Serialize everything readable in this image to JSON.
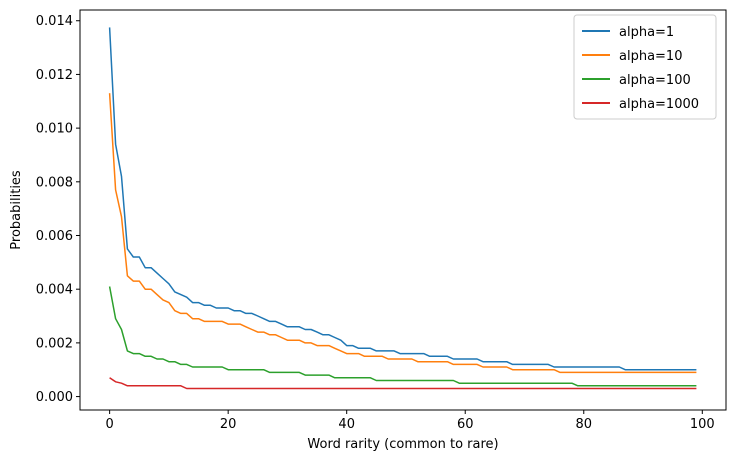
{
  "chart_data": {
    "type": "line",
    "title": "",
    "xlabel": "Word rarity (common to rare)",
    "ylabel": "Probabilities",
    "xlim": [
      -5,
      104
    ],
    "ylim": [
      -0.0005,
      0.0144
    ],
    "xticks": [
      0,
      20,
      40,
      60,
      80,
      100
    ],
    "xtick_labels": [
      "0",
      "20",
      "40",
      "60",
      "80",
      "100"
    ],
    "yticks": [
      0.0,
      0.002,
      0.004,
      0.006,
      0.008,
      0.01,
      0.012,
      0.014
    ],
    "ytick_labels": [
      "0.000",
      "0.002",
      "0.004",
      "0.006",
      "0.008",
      "0.010",
      "0.012",
      "0.014"
    ],
    "grid": false,
    "legend_position": "top-right",
    "x": [
      0,
      1,
      2,
      3,
      4,
      5,
      6,
      7,
      8,
      9,
      10,
      11,
      12,
      13,
      14,
      15,
      16,
      17,
      18,
      19,
      20,
      21,
      22,
      23,
      24,
      25,
      26,
      27,
      28,
      29,
      30,
      31,
      32,
      33,
      34,
      35,
      36,
      37,
      38,
      39,
      40,
      41,
      42,
      43,
      44,
      45,
      46,
      47,
      48,
      49,
      50,
      51,
      52,
      53,
      54,
      55,
      56,
      57,
      58,
      59,
      60,
      61,
      62,
      63,
      64,
      65,
      66,
      67,
      68,
      69,
      70,
      71,
      72,
      73,
      74,
      75,
      76,
      77,
      78,
      79,
      80,
      81,
      82,
      83,
      84,
      85,
      86,
      87,
      88,
      89,
      90,
      91,
      92,
      93,
      94,
      95,
      96,
      97,
      98,
      99
    ],
    "series": [
      {
        "name": "alpha=1",
        "color": "#1f77b4",
        "values": [
          0.01375,
          0.0094,
          0.0082,
          0.0055,
          0.0052,
          0.0052,
          0.0048,
          0.0048,
          0.0046,
          0.0044,
          0.0042,
          0.0039,
          0.0038,
          0.0037,
          0.0035,
          0.0035,
          0.0034,
          0.0034,
          0.0033,
          0.0033,
          0.0033,
          0.0032,
          0.0032,
          0.0031,
          0.0031,
          0.003,
          0.0029,
          0.0028,
          0.0028,
          0.0027,
          0.0026,
          0.0026,
          0.0026,
          0.0025,
          0.0025,
          0.0024,
          0.0023,
          0.0023,
          0.0022,
          0.0021,
          0.0019,
          0.0019,
          0.0018,
          0.0018,
          0.0018,
          0.0017,
          0.0017,
          0.0017,
          0.0017,
          0.0016,
          0.0016,
          0.0016,
          0.0016,
          0.0016,
          0.0015,
          0.0015,
          0.0015,
          0.0015,
          0.0014,
          0.0014,
          0.0014,
          0.0014,
          0.0014,
          0.0013,
          0.0013,
          0.0013,
          0.0013,
          0.0013,
          0.0012,
          0.0012,
          0.0012,
          0.0012,
          0.0012,
          0.0012,
          0.0012,
          0.0011,
          0.0011,
          0.0011,
          0.0011,
          0.0011,
          0.0011,
          0.0011,
          0.0011,
          0.0011,
          0.0011,
          0.0011,
          0.0011,
          0.001,
          0.001,
          0.001,
          0.001,
          0.001,
          0.001,
          0.001,
          0.001,
          0.001,
          0.001,
          0.001,
          0.001,
          0.001
        ]
      },
      {
        "name": "alpha=10",
        "color": "#ff7f0e",
        "values": [
          0.0113,
          0.0077,
          0.0067,
          0.0045,
          0.0043,
          0.0043,
          0.004,
          0.004,
          0.0038,
          0.0036,
          0.0035,
          0.0032,
          0.0031,
          0.0031,
          0.0029,
          0.0029,
          0.0028,
          0.0028,
          0.0028,
          0.0028,
          0.0027,
          0.0027,
          0.0027,
          0.0026,
          0.0025,
          0.0024,
          0.0024,
          0.0023,
          0.0023,
          0.0022,
          0.0021,
          0.0021,
          0.0021,
          0.002,
          0.002,
          0.0019,
          0.0019,
          0.0019,
          0.0018,
          0.0017,
          0.0016,
          0.0016,
          0.0016,
          0.0015,
          0.0015,
          0.0015,
          0.0015,
          0.0014,
          0.0014,
          0.0014,
          0.0014,
          0.0014,
          0.0013,
          0.0013,
          0.0013,
          0.0013,
          0.0013,
          0.0013,
          0.0012,
          0.0012,
          0.0012,
          0.0012,
          0.0012,
          0.0011,
          0.0011,
          0.0011,
          0.0011,
          0.0011,
          0.001,
          0.001,
          0.001,
          0.001,
          0.001,
          0.001,
          0.001,
          0.001,
          0.0009,
          0.0009,
          0.0009,
          0.0009,
          0.0009,
          0.0009,
          0.0009,
          0.0009,
          0.0009,
          0.0009,
          0.0009,
          0.0009,
          0.0009,
          0.0009,
          0.0009,
          0.0009,
          0.0009,
          0.0009,
          0.0009,
          0.0009,
          0.0009,
          0.0009,
          0.0009,
          0.0009
        ]
      },
      {
        "name": "alpha=100",
        "color": "#2ca02c",
        "values": [
          0.0041,
          0.0029,
          0.0025,
          0.0017,
          0.0016,
          0.0016,
          0.0015,
          0.0015,
          0.0014,
          0.0014,
          0.0013,
          0.0013,
          0.0012,
          0.0012,
          0.0011,
          0.0011,
          0.0011,
          0.0011,
          0.0011,
          0.0011,
          0.001,
          0.001,
          0.001,
          0.001,
          0.001,
          0.001,
          0.001,
          0.0009,
          0.0009,
          0.0009,
          0.0009,
          0.0009,
          0.0009,
          0.0008,
          0.0008,
          0.0008,
          0.0008,
          0.0008,
          0.0007,
          0.0007,
          0.0007,
          0.0007,
          0.0007,
          0.0007,
          0.0007,
          0.0006,
          0.0006,
          0.0006,
          0.0006,
          0.0006,
          0.0006,
          0.0006,
          0.0006,
          0.0006,
          0.0006,
          0.0006,
          0.0006,
          0.0006,
          0.0006,
          0.0005,
          0.0005,
          0.0005,
          0.0005,
          0.0005,
          0.0005,
          0.0005,
          0.0005,
          0.0005,
          0.0005,
          0.0005,
          0.0005,
          0.0005,
          0.0005,
          0.0005,
          0.0005,
          0.0005,
          0.0005,
          0.0005,
          0.0005,
          0.0004,
          0.0004,
          0.0004,
          0.0004,
          0.0004,
          0.0004,
          0.0004,
          0.0004,
          0.0004,
          0.0004,
          0.0004,
          0.0004,
          0.0004,
          0.0004,
          0.0004,
          0.0004,
          0.0004,
          0.0004,
          0.0004,
          0.0004,
          0.0004
        ]
      },
      {
        "name": "alpha=1000",
        "color": "#d62728",
        "values": [
          0.0007,
          0.00055,
          0.0005,
          0.0004,
          0.0004,
          0.0004,
          0.0004,
          0.0004,
          0.0004,
          0.0004,
          0.0004,
          0.0004,
          0.0004,
          0.0003,
          0.0003,
          0.0003,
          0.0003,
          0.0003,
          0.0003,
          0.0003,
          0.0003,
          0.0003,
          0.0003,
          0.0003,
          0.0003,
          0.0003,
          0.0003,
          0.0003,
          0.0003,
          0.0003,
          0.0003,
          0.0003,
          0.0003,
          0.0003,
          0.0003,
          0.0003,
          0.0003,
          0.0003,
          0.0003,
          0.0003,
          0.0003,
          0.0003,
          0.0003,
          0.0003,
          0.0003,
          0.0003,
          0.0003,
          0.0003,
          0.0003,
          0.0003,
          0.0003,
          0.0003,
          0.0003,
          0.0003,
          0.0003,
          0.0003,
          0.0003,
          0.0003,
          0.0003,
          0.0003,
          0.0003,
          0.0003,
          0.0003,
          0.0003,
          0.0003,
          0.0003,
          0.0003,
          0.0003,
          0.0003,
          0.0003,
          0.0003,
          0.0003,
          0.0003,
          0.0003,
          0.0003,
          0.0003,
          0.0003,
          0.0003,
          0.0003,
          0.0003,
          0.0003,
          0.0003,
          0.0003,
          0.0003,
          0.0003,
          0.0003,
          0.0003,
          0.0003,
          0.0003,
          0.0003,
          0.0003,
          0.0003,
          0.0003,
          0.0003,
          0.0003,
          0.0003,
          0.0003,
          0.0003,
          0.0003,
          0.0003
        ]
      }
    ]
  }
}
